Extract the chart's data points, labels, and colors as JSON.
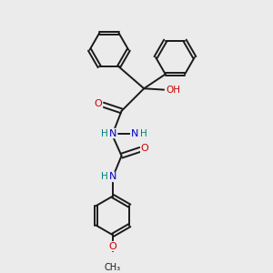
{
  "background_color": "#ebebeb",
  "bond_color": "#1a1a1a",
  "atom_colors": {
    "N": "#0000cc",
    "O": "#cc0000",
    "H": "#008080",
    "C": "#1a1a1a"
  }
}
